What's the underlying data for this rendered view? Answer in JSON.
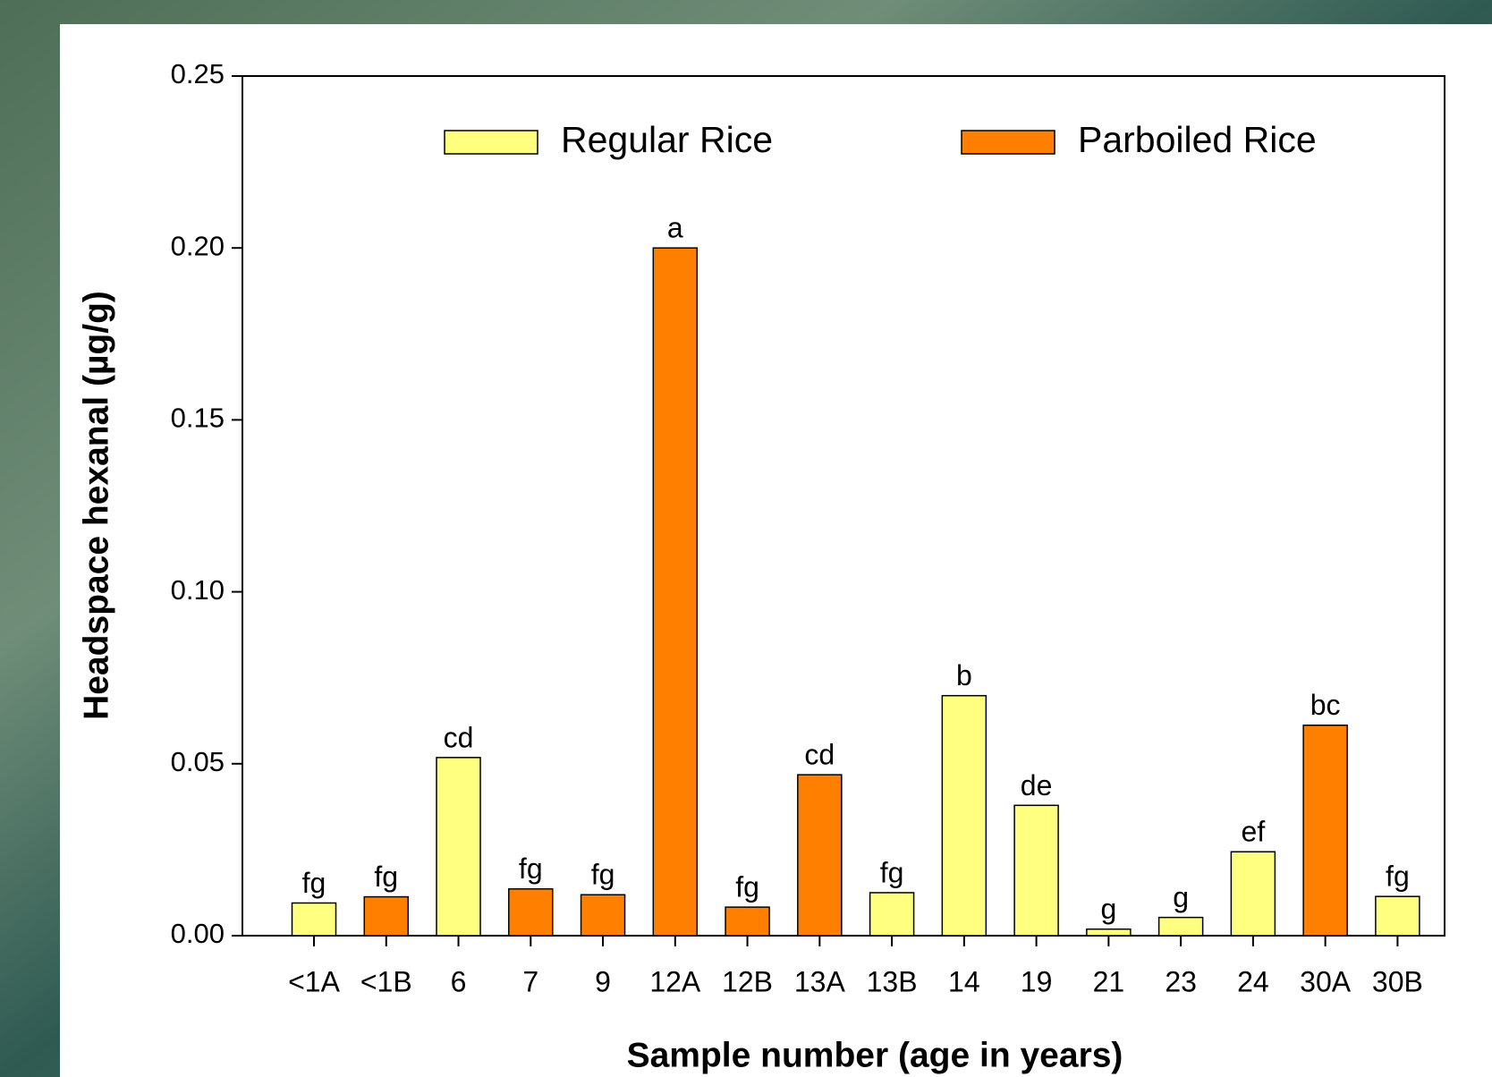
{
  "chart_data": {
    "type": "bar",
    "x_label": "Sample number (age in years)",
    "y_label": "Headspace hexanal (µg/g)",
    "categories": [
      "<1A",
      "<1B",
      "6",
      "7",
      "9",
      "12A",
      "12B",
      "13A",
      "13B",
      "14",
      "19",
      "21",
      "23",
      "24",
      "30A",
      "30B"
    ],
    "series": [
      {
        "name": "Regular Rice",
        "color": "#ffff80",
        "values": [
          0.0095,
          null,
          0.0518,
          null,
          null,
          null,
          null,
          null,
          0.0125,
          0.0698,
          0.0379,
          0.0019,
          0.0053,
          0.0244,
          null,
          0.0114
        ]
      },
      {
        "name": "Parboiled Rice",
        "color": "#ff8000",
        "values": [
          null,
          0.0113,
          null,
          0.0136,
          0.0119,
          0.2,
          0.0083,
          0.0468,
          null,
          null,
          null,
          null,
          null,
          null,
          0.0612,
          null
        ]
      }
    ],
    "annotations": [
      "fg",
      "fg",
      "cd",
      "fg",
      "fg",
      "a",
      "fg",
      "cd",
      "fg",
      "b",
      "de",
      "g",
      "g",
      "ef",
      "bc",
      "fg"
    ],
    "ylim": [
      0,
      0.25
    ],
    "yticks": [
      {
        "value": 0,
        "label": "0.00"
      },
      0.05,
      {
        "value": 0.1,
        "label": "0.10"
      },
      0.15,
      {
        "value": 0.2,
        "label": "0.20"
      },
      0.25
    ],
    "legend": "top"
  }
}
